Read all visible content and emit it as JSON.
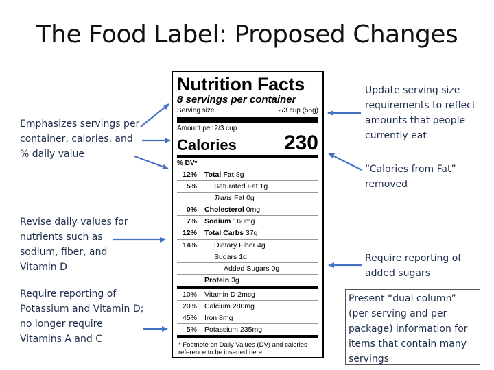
{
  "slide": {
    "title": "The Food Label: Proposed Changes"
  },
  "notes": {
    "left_top": "Emphasizes servings per\ncontainer, calories, and\n% daily value",
    "left_middle": "Revise daily values for\nnutrients such as\nsodium, fiber, and\nVitamin D",
    "left_bottom": "Require reporting of\nPotassium and Vitamin D;\nno longer require\nVitamins A and C",
    "right_top": "Update serving size\nrequirements to reflect\namounts that people\ncurrently eat",
    "right_calories_fat": "“Calories from Fat”\nremoved",
    "right_added_sugars": "Require reporting of\nadded sugars",
    "right_dual_column": "Present “dual column”\n(per serving and per\npackage) information for\nitems that contain many\nservings"
  },
  "label": {
    "title": "Nutrition Facts",
    "servings": "8 servings per container",
    "serving_size_label": "Serving size",
    "serving_size_value": "2/3 cup (55g)",
    "amount_per": "Amount per 2/3 cup",
    "calories_label": "Calories",
    "calories_value": "230",
    "dv_header": "% DV*",
    "rows": [
      {
        "pct": "12%",
        "name": "Total Fat",
        "amount": "8g"
      },
      {
        "pct": "5%",
        "name": "Saturated Fat",
        "amount": "1g"
      },
      {
        "pct": "",
        "name": "Trans",
        "name2": "Fat",
        "amount": "0g"
      },
      {
        "pct": "0%",
        "name": "Cholesterol",
        "amount": "0mg"
      },
      {
        "pct": "7%",
        "name": "Sodium",
        "amount": "160mg"
      },
      {
        "pct": "12%",
        "name": "Total Carbs",
        "amount": "37g"
      },
      {
        "pct": "14%",
        "name": "Dietary Fiber",
        "amount": "4g"
      },
      {
        "pct": "",
        "name": "Sugars",
        "amount": "1g"
      },
      {
        "pct": "",
        "name": "Added Sugars",
        "amount": "0g"
      },
      {
        "pct": "",
        "name": "Protein",
        "amount": "3g"
      },
      {
        "pct": "10%",
        "name": "Vitamin D",
        "amount": "2mcg"
      },
      {
        "pct": "20%",
        "name": "Calcium",
        "amount": "280mg"
      },
      {
        "pct": "45%",
        "name": "Iron",
        "amount": "8mg"
      },
      {
        "pct": "5%",
        "name": "Potassium",
        "amount": "235mg"
      }
    ],
    "footnote": "* Footnote on Daily Values (DV) and calories\nreference to be inserted here."
  },
  "colors": {
    "arrow": "#4472c4",
    "note_text": "#1f2f4d"
  }
}
